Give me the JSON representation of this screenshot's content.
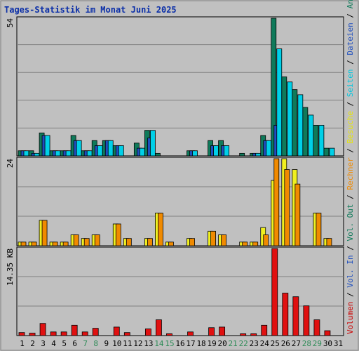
{
  "title": "Tages-Statistik im Monat Juni 2025",
  "chart_data": {
    "type": "bar",
    "title": "Tages-Statistik im Monat Juni 2025",
    "days": [
      {
        "label": "1",
        "weekend": false
      },
      {
        "label": "2",
        "weekend": false
      },
      {
        "label": "3",
        "weekend": false
      },
      {
        "label": "4",
        "weekend": false
      },
      {
        "label": "5",
        "weekend": false
      },
      {
        "label": "6",
        "weekend": false
      },
      {
        "label": "7",
        "weekend": true
      },
      {
        "label": "8",
        "weekend": true
      },
      {
        "label": "9",
        "weekend": false
      },
      {
        "label": "10",
        "weekend": false
      },
      {
        "label": "11",
        "weekend": false
      },
      {
        "label": "12",
        "weekend": false
      },
      {
        "label": "13",
        "weekend": false
      },
      {
        "label": "14",
        "weekend": true
      },
      {
        "label": "15",
        "weekend": true
      },
      {
        "label": "16",
        "weekend": false
      },
      {
        "label": "17",
        "weekend": false
      },
      {
        "label": "18",
        "weekend": false
      },
      {
        "label": "19",
        "weekend": false
      },
      {
        "label": "20",
        "weekend": false
      },
      {
        "label": "21",
        "weekend": true
      },
      {
        "label": "22",
        "weekend": true
      },
      {
        "label": "23",
        "weekend": false
      },
      {
        "label": "24",
        "weekend": false
      },
      {
        "label": "25",
        "weekend": false
      },
      {
        "label": "26",
        "weekend": false
      },
      {
        "label": "27",
        "weekend": false
      },
      {
        "label": "28",
        "weekend": true
      },
      {
        "label": "29",
        "weekend": true
      },
      {
        "label": "30",
        "weekend": false
      },
      {
        "label": "31",
        "weekend": false
      }
    ],
    "panels": [
      {
        "name": "top",
        "max_label": "54",
        "max": 54,
        "series": [
          {
            "name": "Anfragen",
            "color": "#0f7a5a",
            "values": [
              2,
              2,
              9,
              2,
              2,
              8,
              2,
              6,
              6,
              4,
              0,
              5,
              10,
              1,
              0,
              0,
              2,
              0,
              6,
              6,
              0,
              1,
              1,
              8,
              54,
              31,
              26,
              19,
              12,
              3,
              0
            ]
          },
          {
            "name": "Dateien",
            "color": "#1f4fbf",
            "values": [
              2,
              1,
              8,
              2,
              2,
              6,
              2,
              4,
              6,
              4,
              0,
              3,
              7,
              0,
              0,
              0,
              2,
              0,
              4,
              4,
              0,
              0,
              1,
              6,
              12,
              0,
              0,
              0,
              0,
              0,
              0
            ]
          },
          {
            "name": "Seiten",
            "color": "#00d0e8",
            "values": [
              2,
              1,
              8,
              2,
              2,
              6,
              2,
              4,
              6,
              4,
              0,
              3,
              10,
              0,
              0,
              0,
              2,
              0,
              4,
              4,
              0,
              0,
              1,
              6,
              42,
              29,
              24,
              16,
              12,
              3,
              0
            ]
          }
        ]
      },
      {
        "name": "middle",
        "max_label": "24",
        "max": 24,
        "series": [
          {
            "name": "Besuche",
            "color": "#f0f020",
            "values": [
              1,
              1,
              7,
              1,
              1,
              3,
              2,
              3,
              0,
              6,
              2,
              0,
              2,
              9,
              1,
              0,
              2,
              0,
              4,
              3,
              0,
              1,
              1,
              5,
              18,
              24,
              21,
              0,
              9,
              2,
              0
            ]
          },
          {
            "name": "Rechner",
            "color": "#f08a00",
            "values": [
              1,
              1,
              7,
              1,
              1,
              3,
              2,
              3,
              0,
              6,
              2,
              0,
              2,
              9,
              1,
              0,
              2,
              0,
              4,
              3,
              0,
              1,
              1,
              3,
              24,
              21,
              17,
              0,
              9,
              2,
              0
            ]
          }
        ]
      },
      {
        "name": "bottom",
        "max_label": "14.35 KB",
        "max": 14.35,
        "series": [
          {
            "name": "Volumen",
            "color": "#e01010",
            "values": [
              0.5,
              0.4,
              2.0,
              0.6,
              0.6,
              1.7,
              0.6,
              1.2,
              0,
              1.4,
              0.5,
              0,
              1.1,
              2.6,
              0.3,
              0,
              0.6,
              0,
              1.3,
              1.4,
              0,
              0.3,
              0.3,
              1.7,
              14.35,
              7.0,
              6.4,
              4.9,
              2.6,
              0.8,
              0
            ]
          }
        ]
      }
    ],
    "right_legend": [
      {
        "text": "Volumen",
        "color": "#cc0000"
      },
      {
        "text": " / ",
        "color": "#000000"
      },
      {
        "text": "Vol. In",
        "color": "#1f4fbf"
      },
      {
        "text": " / ",
        "color": "#000000"
      },
      {
        "text": "Vol. Out",
        "color": "#0f7a5a"
      },
      {
        "text": " / ",
        "color": "#000000"
      },
      {
        "text": "Rechner",
        "color": "#f08a00"
      },
      {
        "text": " / ",
        "color": "#000000"
      },
      {
        "text": "Besuche",
        "color": "#e8e800"
      },
      {
        "text": " / ",
        "color": "#000000"
      },
      {
        "text": "Seiten",
        "color": "#00c8e0"
      },
      {
        "text": " / ",
        "color": "#000000"
      },
      {
        "text": "Dateien",
        "color": "#1f4fbf"
      },
      {
        "text": " / ",
        "color": "#000000"
      },
      {
        "text": "Anfragen",
        "color": "#0f7a5a"
      }
    ],
    "colors": {
      "background": "#c0c0c0",
      "gridline": "#808080",
      "weekend_label": "#2e8b57",
      "weekday_label": "#000000"
    }
  }
}
